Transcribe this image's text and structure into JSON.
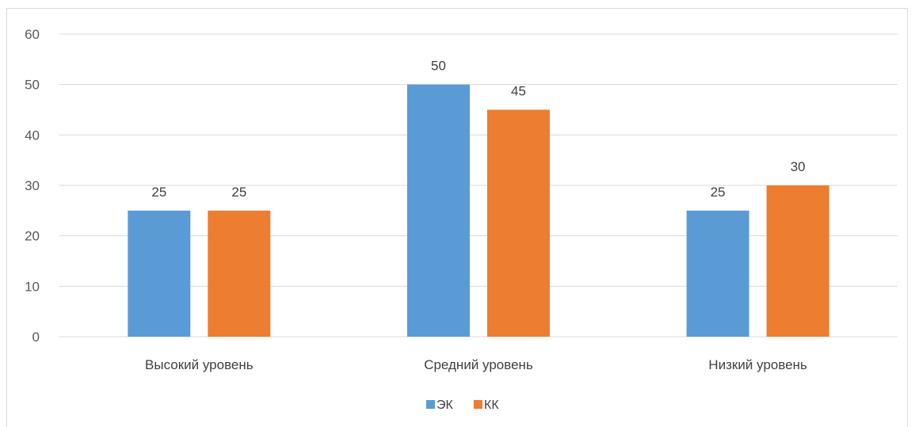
{
  "chart_data": {
    "type": "bar",
    "title": "",
    "xlabel": "",
    "ylabel": "",
    "categories": [
      "Высокий уровень",
      "Средний уровень",
      "Низкий уровень"
    ],
    "series": [
      {
        "name": "ЭК",
        "values": [
          25,
          50,
          25
        ],
        "color": "#5b9bd5"
      },
      {
        "name": "КК",
        "values": [
          25,
          45,
          30
        ],
        "color": "#ed7d31"
      }
    ],
    "ylim": [
      0,
      60
    ],
    "yticks": [
      0,
      10,
      20,
      30,
      40,
      50,
      60
    ],
    "grid": true,
    "legend_position": "bottom",
    "data_labels": true
  }
}
